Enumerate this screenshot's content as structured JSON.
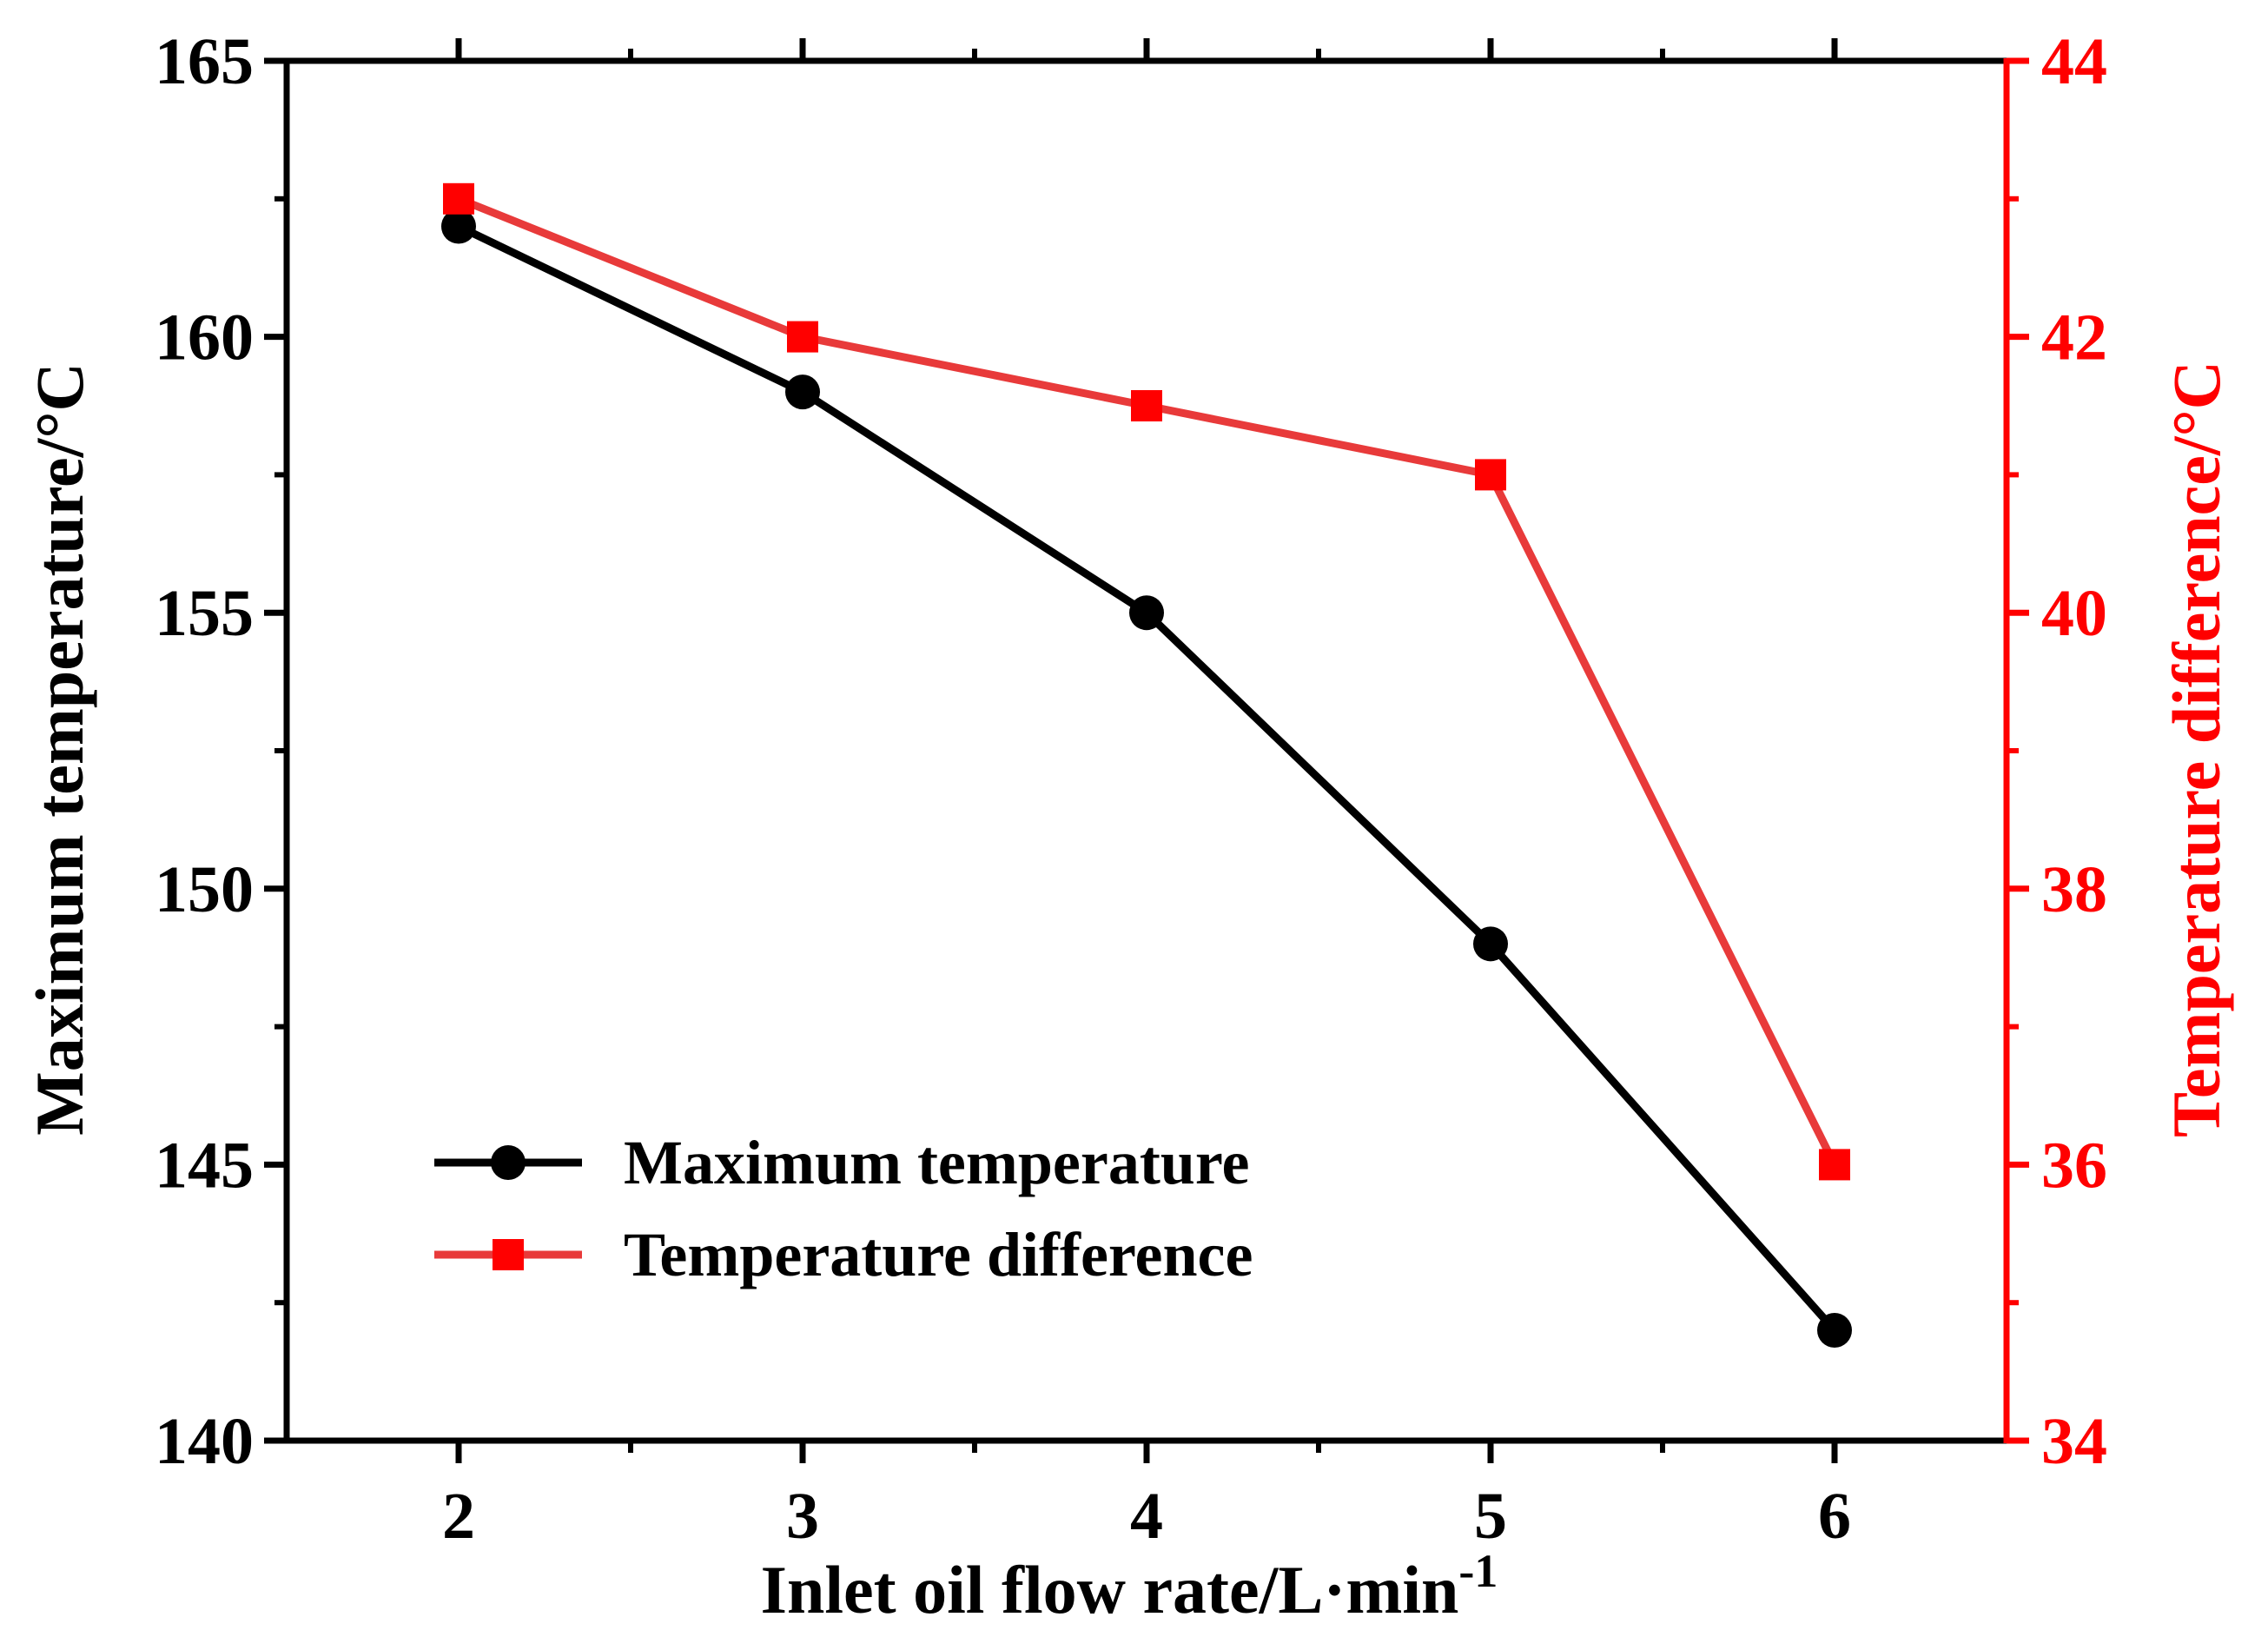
{
  "chart_data": {
    "type": "line",
    "x": [
      2,
      3,
      4,
      5,
      6
    ],
    "xlim": [
      1.5,
      6.5
    ],
    "x_ticks": [
      2,
      3,
      4,
      5,
      6
    ],
    "xlabel": "Inlet oil flow rate/L·min",
    "xlabel_sup": "-1",
    "ylabel_left": "Maximum temperature/°C",
    "ylabel_right": "Temperature difference/°C",
    "ylim_left": [
      140,
      165
    ],
    "ylim_right": [
      34,
      44
    ],
    "y_ticks_left": [
      140,
      145,
      150,
      155,
      160,
      165
    ],
    "y_ticks_right": [
      34,
      36,
      38,
      40,
      42,
      44
    ],
    "series": [
      {
        "name": "Maximum temperature",
        "axis": "left",
        "marker": "circle",
        "color": "#000000",
        "values": [
          162,
          159,
          155,
          149,
          142
        ]
      },
      {
        "name": "Temperature difference",
        "axis": "right",
        "marker": "square",
        "color": "#e83a3a",
        "marker_color": "#ff0000",
        "values": [
          43,
          42,
          41.5,
          41,
          36
        ]
      }
    ],
    "legend_position": "bottom-left",
    "right_axis_color": "#ff0000"
  }
}
